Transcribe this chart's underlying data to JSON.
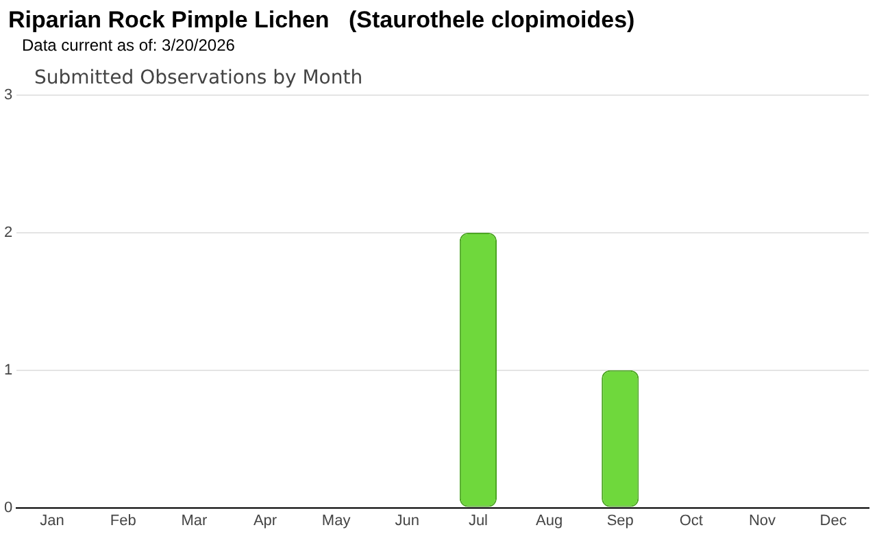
{
  "chart_data": {
    "type": "bar",
    "title": "Riparian Rock Pimple Lichen   (Staurothele clopimoides)",
    "subtitle": "Data current as of: 3/20/2026",
    "annotations": [
      "Submitted Observations by Month"
    ],
    "categories": [
      "Jan",
      "Feb",
      "Mar",
      "Apr",
      "May",
      "Jun",
      "Jul",
      "Aug",
      "Sep",
      "Oct",
      "Nov",
      "Dec"
    ],
    "values": [
      0,
      0,
      0,
      0,
      0,
      0,
      2,
      0,
      1,
      0,
      0,
      0
    ],
    "color": "#6fd83c",
    "ylim": [
      0,
      3
    ],
    "yticks": [
      0,
      1,
      2,
      3
    ],
    "grid": "y"
  }
}
